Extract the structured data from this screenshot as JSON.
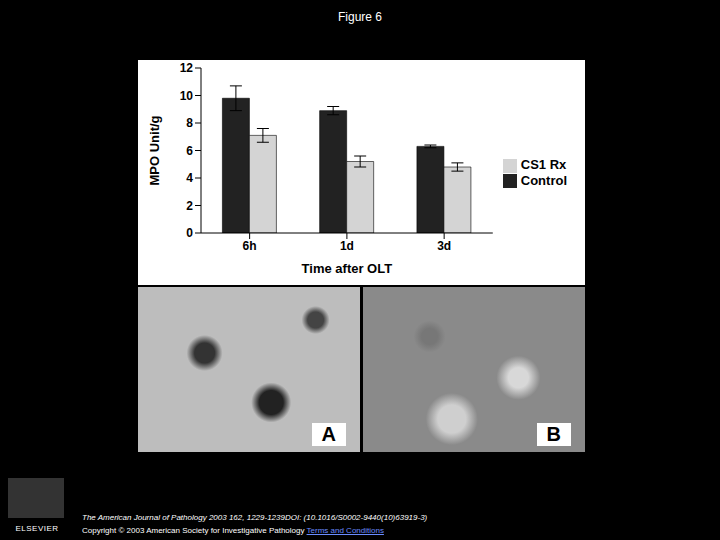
{
  "page": {
    "header": "Figure 6",
    "panels": [
      "A",
      "B"
    ],
    "publisher": "ELSEVIER",
    "citation": "The American Journal of Pathology 2003 162, 1229-1239DOI: (10.1016/S0002-9440(10)63919-3)",
    "copyright": "Copyright © 2003 American Society for Investigative Pathology",
    "link": "Terms and Conditions"
  },
  "chart_data": {
    "type": "bar",
    "x_label": "Time after OLT",
    "y_label": "MPO Unit/g",
    "categories": [
      "6h",
      "1d",
      "3d"
    ],
    "series": [
      {
        "name": "Control",
        "color": "#222222",
        "values": [
          9.8,
          8.9,
          6.3
        ],
        "errors": [
          0.9,
          0.3,
          0.1
        ]
      },
      {
        "name": "CS1 Rx",
        "color": "#d4d4d4",
        "values": [
          7.1,
          5.2,
          4.8
        ],
        "errors": [
          0.5,
          0.4,
          0.3
        ]
      }
    ],
    "ylim": [
      0,
      12
    ],
    "yticks": [
      0,
      2,
      4,
      6,
      8,
      10,
      12
    ],
    "grid": false,
    "legend": "right"
  }
}
